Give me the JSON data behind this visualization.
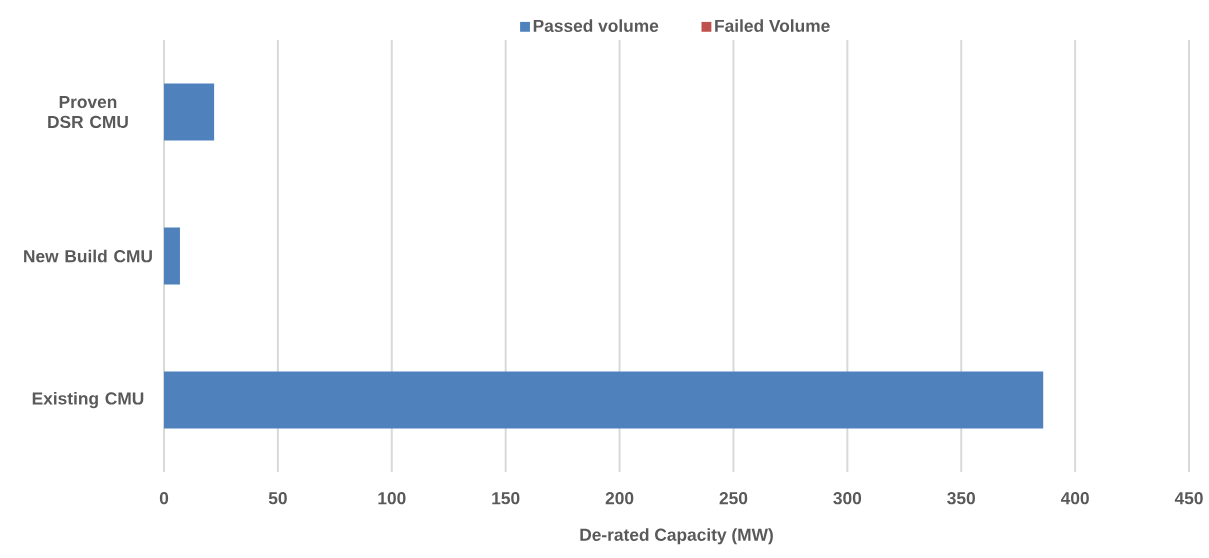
{
  "chart_data": {
    "type": "bar",
    "orientation": "horizontal",
    "stacked": true,
    "xlabel": "De-rated Capacity (MW)",
    "categories": [
      "Proven DSR CMU",
      "New Build CMU",
      "Existing CMU"
    ],
    "series": [
      {
        "name": "Passed volume",
        "color": "#4f81bd",
        "values": [
          22,
          7,
          386
        ]
      },
      {
        "name": "Failed Volume",
        "color": "#c0504d",
        "values": [
          0,
          0,
          0
        ]
      }
    ],
    "xlim": [
      0,
      450
    ],
    "xticks": [
      0,
      50,
      100,
      150,
      200,
      250,
      300,
      350,
      400,
      450
    ],
    "grid": "x",
    "legend": "top"
  }
}
